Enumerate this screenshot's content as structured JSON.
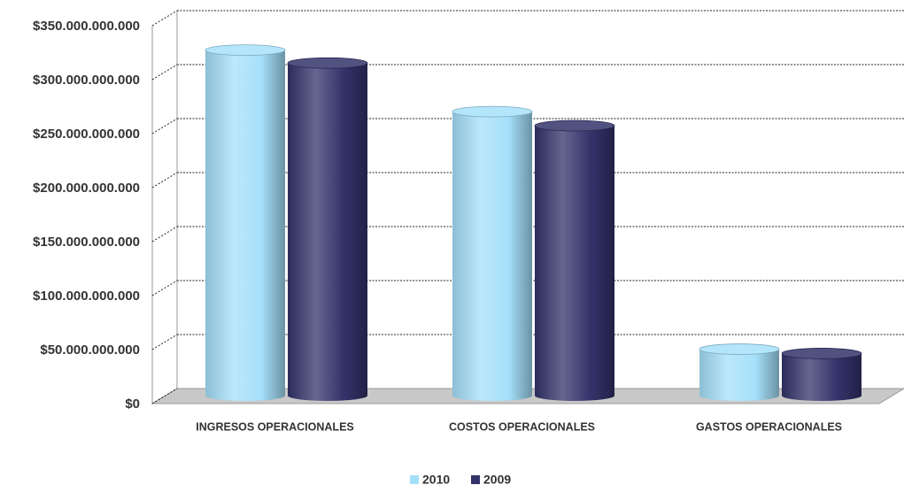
{
  "chart_data": {
    "type": "bar",
    "categories": [
      "INGRESOS OPERACIONALES",
      "COSTOS OPERACIONALES",
      "GASTOS OPERACIONALES"
    ],
    "series": [
      {
        "name": "2010",
        "color": "#a5e0fa",
        "values": [
          320000000000,
          263000000000,
          43000000000
        ]
      },
      {
        "name": "2009",
        "color": "#33336b",
        "values": [
          308000000000,
          250000000000,
          39000000000
        ]
      }
    ],
    "ylim": [
      0,
      350000000000
    ],
    "yticks": [
      {
        "value": 0,
        "label": "$0"
      },
      {
        "value": 50000000000,
        "label": "$50.000.000.000"
      },
      {
        "value": 100000000000,
        "label": "$100.000.000.000"
      },
      {
        "value": 150000000000,
        "label": "$150.000.000.000"
      },
      {
        "value": 200000000000,
        "label": "$200.000.000.000"
      },
      {
        "value": 250000000000,
        "label": "$250.000.000.000"
      },
      {
        "value": 300000000000,
        "label": "$300.000.000.000"
      },
      {
        "value": 350000000000,
        "label": "$350.000.000.000"
      }
    ],
    "grid": true,
    "legend": "bottom"
  }
}
